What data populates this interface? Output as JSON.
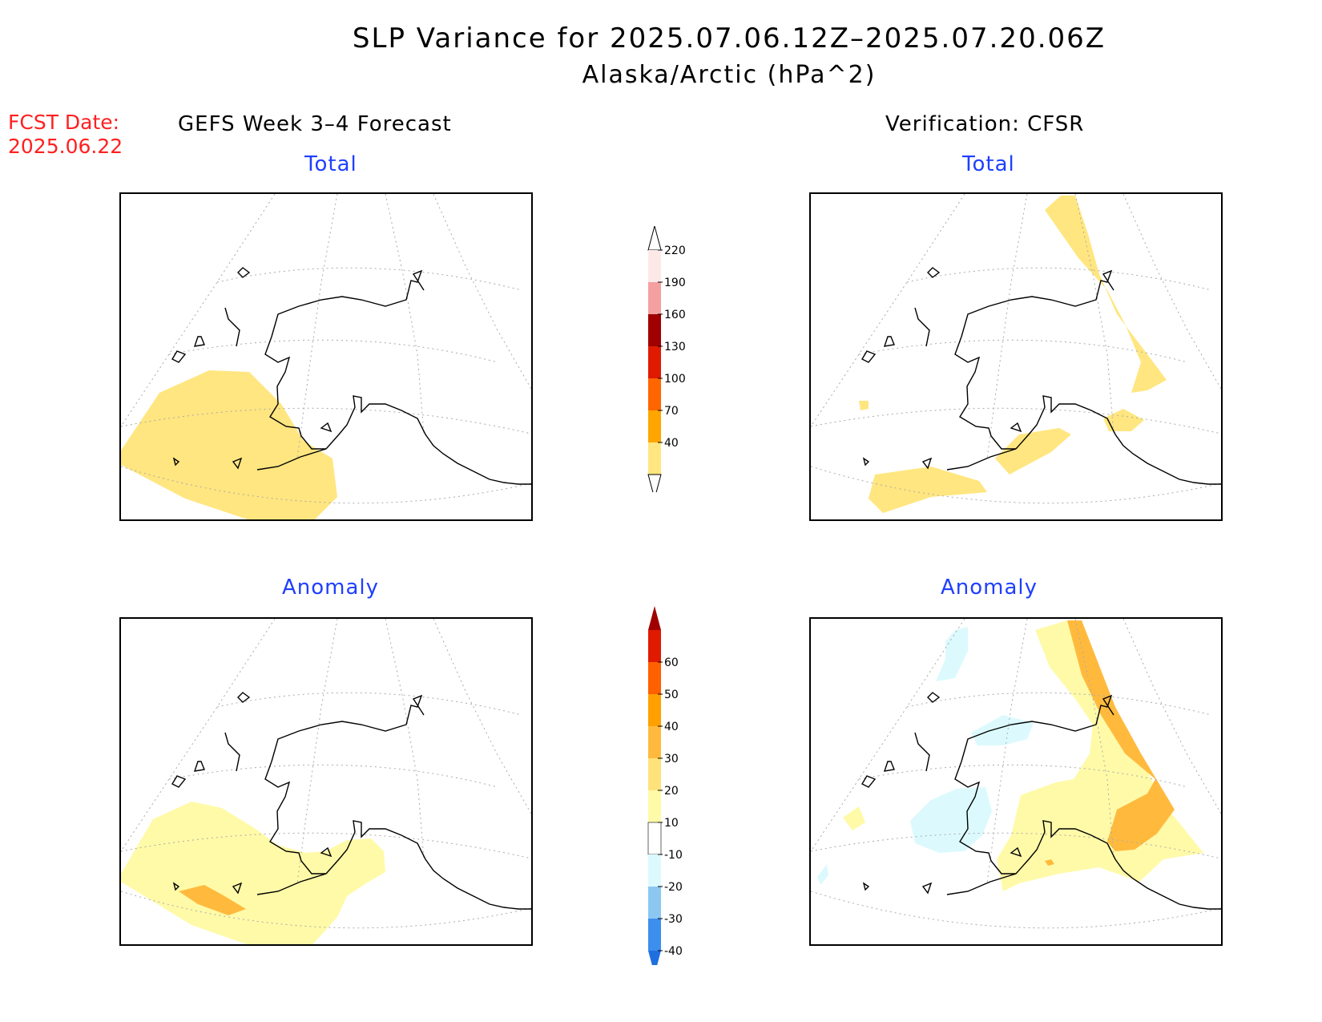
{
  "title": {
    "line1": "SLP Variance for 2025.07.06.12Z–2025.07.20.06Z",
    "line2": "Alaska/Arctic (hPa^2)"
  },
  "fcst_date": {
    "label": "FCST Date:",
    "value": "2025.06.22"
  },
  "columns": {
    "left": "GEFS Week 3–4 Forecast",
    "right": "Verification: CFSR"
  },
  "panels": [
    {
      "id": "fcst-total",
      "title": "Total"
    },
    {
      "id": "verif-total",
      "title": "Total"
    },
    {
      "id": "fcst-anomaly",
      "title": "Anomaly"
    },
    {
      "id": "verif-anomaly",
      "title": "Anomaly"
    }
  ],
  "colorbars": {
    "total": {
      "levels": [
        "40",
        "70",
        "100",
        "130",
        "160",
        "190",
        "220"
      ],
      "colors": [
        "#ffe680",
        "#ffa500",
        "#ff6600",
        "#e01a00",
        "#a00000",
        "#f4a0a0",
        "#fde8e8"
      ]
    },
    "anomaly": {
      "levels": [
        "-40",
        "-30",
        "-20",
        "-10",
        "10",
        "20",
        "30",
        "40",
        "50",
        "60"
      ],
      "colors": [
        "#1f6fe0",
        "#3d8fee",
        "#8cc7f2",
        "#dcfafe",
        "#ffffff",
        "#fffaa8",
        "#ffe37a",
        "#ffba3e",
        "#ffa000",
        "#ff6000",
        "#e01a00",
        "#a00000"
      ]
    }
  },
  "palette": {
    "yellow_fill": "#ffe680",
    "light_yellow_fill": "#fffaa8",
    "orange_fill": "#ffba3e",
    "light_blue_fill": "#dcfafe",
    "panel_title_color": "#1f3fff",
    "fcst_date_color": "#ff2020"
  }
}
